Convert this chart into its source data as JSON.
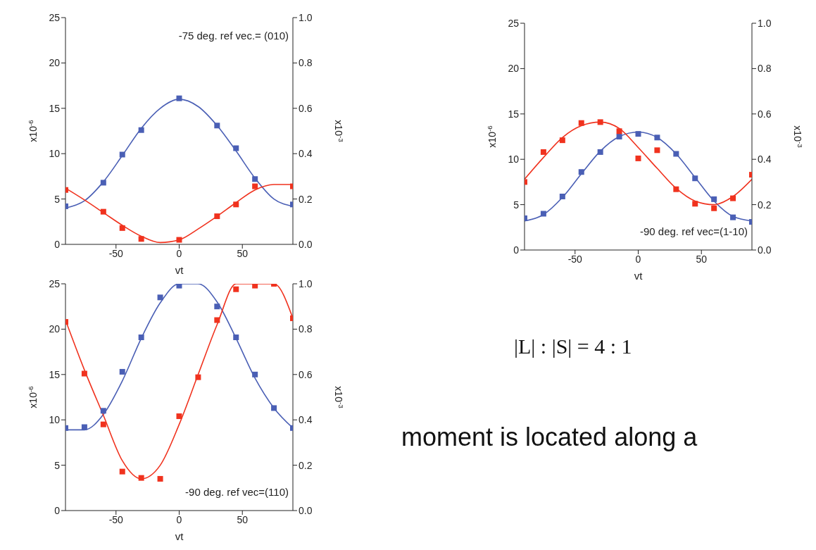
{
  "chart_data": [
    {
      "type": "scatter",
      "annotations": [
        "-75 deg. ref vec.= (010)"
      ],
      "xlabel": "vt",
      "ylabel": "x10$^{-6}$",
      "y2label": "x10$^{-3}$",
      "xlim": [
        -90,
        90
      ],
      "xticks": [
        -50,
        0,
        50
      ],
      "ylim": [
        0,
        25
      ],
      "yticks": [
        0,
        5,
        10,
        15,
        20,
        25
      ],
      "y2lim": [
        0,
        1
      ],
      "y2ticks": [
        {
          "value": 0,
          "label": "0.0"
        },
        {
          "value": 0.2,
          "label": "0.2"
        },
        {
          "value": 0.4,
          "label": "0.4"
        },
        {
          "value": 0.6,
          "label": "0.6"
        },
        {
          "value": 0.8,
          "label": "0.8"
        },
        {
          "value": 1,
          "label": "1.0"
        }
      ],
      "grid": false,
      "legend": false,
      "marker": "square",
      "series": [
        {
          "type": "line",
          "marker": "none",
          "color": "#4a5fb5",
          "x": [
            -90,
            -75,
            -60,
            -45,
            -30,
            -15,
            0,
            15,
            30,
            45,
            60,
            75,
            90
          ],
          "values": [
            4.0,
            4.8,
            6.9,
            9.8,
            12.8,
            15.0,
            16.0,
            15.2,
            13.1,
            10.3,
            7.3,
            5.0,
            4.2
          ]
        },
        {
          "type": "line",
          "marker": "none",
          "color": "#f0321e",
          "x": [
            -90,
            -75,
            -60,
            -45,
            -30,
            -15,
            0,
            15,
            30,
            45,
            60,
            75,
            90
          ],
          "values": [
            6.2,
            4.9,
            3.5,
            2.1,
            0.9,
            0.2,
            0.5,
            1.7,
            3.1,
            4.6,
            6.0,
            6.6,
            6.6
          ]
        },
        {
          "color": "#4a5fb5",
          "x": [
            -90,
            -60,
            -45,
            -30,
            0,
            30,
            45,
            60,
            90
          ],
          "values": [
            4.2,
            6.8,
            9.9,
            12.6,
            16.1,
            13.1,
            10.6,
            7.2,
            4.4
          ]
        },
        {
          "color": "#f0321e",
          "x": [
            -90,
            -60,
            -45,
            -30,
            0,
            30,
            45,
            60,
            90
          ],
          "values": [
            6.0,
            3.6,
            1.8,
            0.6,
            0.5,
            3.1,
            4.4,
            6.4,
            6.4
          ]
        }
      ]
    },
    {
      "type": "scatter",
      "annotations": [
        "-90 deg. ref vec=(1-10)"
      ],
      "xlabel": "vt",
      "ylabel": "x10$^{-6}$",
      "y2label": "x10$^{-3}$",
      "xlim": [
        -90,
        90
      ],
      "xticks": [
        -50,
        0,
        50
      ],
      "ylim": [
        0,
        25
      ],
      "yticks": [
        0,
        5,
        10,
        15,
        20,
        25
      ],
      "y2lim": [
        0,
        1
      ],
      "y2ticks": [
        {
          "value": 0,
          "label": "0.0"
        },
        {
          "value": 0.2,
          "label": "0.2"
        },
        {
          "value": 0.4,
          "label": "0.4"
        },
        {
          "value": 0.6,
          "label": "0.6"
        },
        {
          "value": 0.8,
          "label": "0.8"
        },
        {
          "value": 1,
          "label": "1.0"
        }
      ],
      "grid": false,
      "legend": false,
      "marker": "square",
      "series": [
        {
          "type": "line",
          "marker": "none",
          "color": "#4a5fb5",
          "x": [
            -90,
            -75,
            -60,
            -45,
            -30,
            -15,
            0,
            15,
            30,
            45,
            60,
            75,
            90
          ],
          "values": [
            3.2,
            3.9,
            5.8,
            8.4,
            10.9,
            12.5,
            13.0,
            12.4,
            10.6,
            8.0,
            5.4,
            3.7,
            3.2
          ]
        },
        {
          "type": "line",
          "marker": "none",
          "color": "#f0321e",
          "x": [
            -90,
            -75,
            -60,
            -45,
            -30,
            -15,
            0,
            15,
            30,
            45,
            60,
            75,
            90
          ],
          "values": [
            7.8,
            10.2,
            12.4,
            13.7,
            14.1,
            13.4,
            11.3,
            9.0,
            6.8,
            5.4,
            5.0,
            5.9,
            7.8
          ]
        },
        {
          "color": "#4a5fb5",
          "x": [
            -90,
            -75,
            -60,
            -45,
            -30,
            -15,
            0,
            15,
            30,
            45,
            60,
            75,
            90
          ],
          "values": [
            3.5,
            4.0,
            5.9,
            8.6,
            10.8,
            12.5,
            12.8,
            12.4,
            10.6,
            7.9,
            5.6,
            3.6,
            3.1
          ]
        },
        {
          "color": "#f0321e",
          "x": [
            -90,
            -75,
            -60,
            -45,
            -30,
            -15,
            0,
            15,
            30,
            45,
            60,
            75,
            90
          ],
          "values": [
            7.5,
            10.8,
            12.1,
            14.0,
            14.1,
            13.1,
            10.1,
            11.0,
            6.7,
            5.1,
            4.6,
            5.7,
            8.3
          ]
        }
      ]
    },
    {
      "type": "scatter",
      "annotations": [
        "-90 deg. ref vec=(110)"
      ],
      "xlabel": "vt",
      "ylabel": "x10$^{-6}$",
      "y2label": "x10$^{-3}$",
      "xlim": [
        -90,
        90
      ],
      "xticks": [
        -50,
        0,
        50
      ],
      "ylim": [
        0,
        25
      ],
      "yticks": [
        0,
        5,
        10,
        15,
        20,
        25
      ],
      "y2lim": [
        0,
        1
      ],
      "y2ticks": [
        {
          "value": 0,
          "label": "0.0"
        },
        {
          "value": 0.2,
          "label": "0.2"
        },
        {
          "value": 0.4,
          "label": "0.4"
        },
        {
          "value": 0.6,
          "label": "0.6"
        },
        {
          "value": 0.8,
          "label": "0.8"
        },
        {
          "value": 1,
          "label": "1.0"
        }
      ],
      "grid": false,
      "legend": false,
      "marker": "square",
      "series": [
        {
          "type": "line",
          "marker": "none",
          "color": "#4a5fb5",
          "x": [
            -90,
            -75,
            -60,
            -45,
            -30,
            -15,
            0,
            15,
            30,
            45,
            60,
            75,
            90
          ],
          "values": [
            8.9,
            8.9,
            10.6,
            14.3,
            19.0,
            22.9,
            25.0,
            25.0,
            23.0,
            19.0,
            14.6,
            11.3,
            9.1
          ]
        },
        {
          "type": "line",
          "marker": "none",
          "color": "#f0321e",
          "x": [
            -90,
            -75,
            -60,
            -45,
            -30,
            -15,
            0,
            15,
            30,
            45,
            60,
            75,
            90
          ],
          "values": [
            21.0,
            15.5,
            10.5,
            5.5,
            3.5,
            5.0,
            9.5,
            15.0,
            20.5,
            25.0,
            25.0,
            25.0,
            21.2
          ]
        },
        {
          "color": "#4a5fb5",
          "x": [
            -90,
            -75,
            -60,
            -45,
            -30,
            -15,
            0,
            30,
            45,
            60,
            75,
            90
          ],
          "values": [
            9.1,
            9.2,
            11.0,
            15.3,
            19.1,
            23.5,
            24.8,
            22.5,
            19.1,
            15.0,
            11.3,
            9.1
          ]
        },
        {
          "color": "#f0321e",
          "x": [
            -90,
            -75,
            -60,
            -45,
            -30,
            -15,
            0,
            15,
            30,
            45,
            60,
            75,
            90
          ],
          "values": [
            20.8,
            15.1,
            9.5,
            4.3,
            3.6,
            3.5,
            10.4,
            14.7,
            21.0,
            24.4,
            24.8,
            25.0,
            21.2
          ]
        }
      ]
    },
    {
      "type": "other",
      "annotations": [
        "|L| : |S| = 4 : 1",
        "moment is located along a"
      ]
    }
  ]
}
